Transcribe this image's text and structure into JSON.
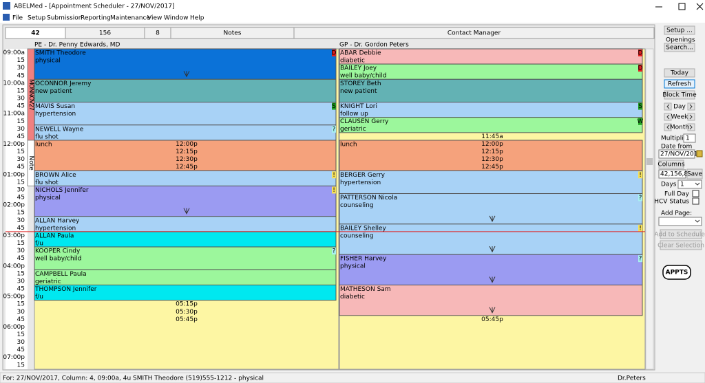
{
  "window": {
    "title": "ABELMed - [Appointment Scheduler - 27/NOV/2017]",
    "menu": [
      "File",
      "Setup",
      "Submission",
      "Reporting",
      "Maintenance",
      "View",
      "Window",
      "Help"
    ]
  },
  "tabs": [
    "42",
    "156",
    "8",
    "Notes",
    "Contact Manager"
  ],
  "date_strip": "MONNOV27",
  "note_strip": "Note",
  "current_time_slot": 24,
  "times": [
    "09:00a",
    "15",
    "30",
    "45",
    "10:00a",
    "15",
    "30",
    "45",
    "11:00a",
    "15",
    "30",
    "45",
    "12:00p",
    "15",
    "30",
    "45",
    "01:00p",
    "15",
    "30",
    "45",
    "02:00p",
    "15",
    "30",
    "45",
    "03:00p",
    "15",
    "30",
    "45",
    "04:00p",
    "15",
    "30",
    "45",
    "05:00p",
    "15",
    "30",
    "45",
    "06:00p",
    "15",
    "30",
    "45",
    "07:00p",
    "15"
  ],
  "columns": [
    {
      "header": "PE - Dr. Penny Edwards, MD",
      "appointments": [
        {
          "name": "SMITH Theodore",
          "reason": "physical",
          "slot": 0,
          "length": 4,
          "color": "#0b72d8",
          "text_color": "#ffffff",
          "flag": {
            "text": "D",
            "color": "#e02020"
          }
        },
        {
          "name": "OCONNOR Jeremy",
          "reason": "new patient",
          "slot": 4,
          "length": 3,
          "color": "#63b2b4"
        },
        {
          "name": "MAVIS Susan",
          "reason": "hypertension",
          "slot": 7,
          "length": 3,
          "color": "#a8d2f6",
          "flag": {
            "text": "S",
            "color": "#20a020"
          }
        },
        {
          "name": "NEWELL Wayne",
          "reason": "flu shot",
          "slot": 10,
          "length": 2,
          "color": "#a8d2f6",
          "flag": {
            "text": "?",
            "color": "#a8f0f0"
          }
        },
        {
          "name": "lunch",
          "slot": 12,
          "length": 4,
          "color": "#f5a27c",
          "times": [
            "12:00p",
            "12:15p",
            "12:30p",
            "12:45p"
          ]
        },
        {
          "name": "BROWN Alice",
          "reason": "flu shot",
          "slot": 16,
          "length": 2,
          "color": "#a8d2f6",
          "flag": {
            "text": "!",
            "color": "#f5e05a"
          }
        },
        {
          "name": "NICHOLS Jennifer",
          "reason": "physical",
          "slot": 18,
          "length": 4,
          "color": "#9b9bf2",
          "flag": {
            "text": "!",
            "color": "#f5e05a"
          }
        },
        {
          "name": "ALLAN Harvey",
          "reason": "hypertension",
          "slot": 22,
          "length": 2,
          "color": "#a8d2f6"
        },
        {
          "name": "ALLAN Paula",
          "reason": "f/u",
          "slot": 24,
          "length": 2,
          "color": "#00e8f0"
        },
        {
          "name": "KOOPER Cindy",
          "reason": "well baby/child",
          "slot": 26,
          "length": 3,
          "color": "#9cf79c",
          "flag": {
            "text": "?",
            "color": "#a8f0f0"
          }
        },
        {
          "name": "CAMPBELL Paula",
          "reason": "geriatric",
          "slot": 29,
          "length": 2,
          "color": "#9cf79c"
        },
        {
          "name": "THOMPSON Jennifer",
          "reason": "f/u",
          "slot": 31,
          "length": 2,
          "color": "#00e8f0"
        }
      ],
      "open_slots": [
        {
          "slot": 33,
          "text": "05:15p"
        },
        {
          "slot": 34,
          "text": "05:30p"
        },
        {
          "slot": 35,
          "text": "05:45p"
        }
      ]
    },
    {
      "header": "GP - Dr. Gordon Peters",
      "appointments": [
        {
          "name": "ABAR Debbie",
          "reason": "diabetic",
          "slot": 0,
          "length": 2,
          "color": "#f7b8b8",
          "flag": {
            "text": "D",
            "color": "#e02020"
          }
        },
        {
          "name": "BAILEY Joey",
          "reason": "well baby/child",
          "slot": 2,
          "length": 2,
          "color": "#9cf79c",
          "flag": {
            "text": "D",
            "color": "#e02020"
          }
        },
        {
          "name": "STOREY Beth",
          "reason": "new patient",
          "slot": 4,
          "length": 3,
          "color": "#63b2b4"
        },
        {
          "name": "KNIGHT Lori",
          "reason": "follow up",
          "slot": 7,
          "length": 2,
          "color": "#a8d2f6",
          "flag": {
            "text": "S",
            "color": "#20a020"
          }
        },
        {
          "name": "CLAUSEN Gerry",
          "reason": "geriatric",
          "slot": 9,
          "length": 2,
          "color": "#9cf79c",
          "flag": {
            "text": "W",
            "color": "#20a020"
          }
        },
        {
          "name": "lunch",
          "slot": 12,
          "length": 4,
          "color": "#f5a27c",
          "times": [
            "12:00p",
            "12:15p",
            "12:30p",
            "12:45p"
          ]
        },
        {
          "name": "BERGER Gerry",
          "reason": "hypertension",
          "slot": 16,
          "length": 3,
          "color": "#a8d2f6",
          "flag": {
            "text": "!",
            "color": "#f5e05a"
          }
        },
        {
          "name": "PATTERSON Nicola",
          "reason": "counseling",
          "slot": 19,
          "length": 4,
          "color": "#a8d2f6",
          "flag": {
            "text": "?",
            "color": "#a8f0f0"
          }
        },
        {
          "name": "BAILEY Shelley",
          "reason": "counseling",
          "slot": 23,
          "length": 4,
          "color": "#a8d2f6",
          "flag": {
            "text": "!",
            "color": "#f5e05a"
          }
        },
        {
          "name": "FISHER Harvey",
          "reason": "physical",
          "slot": 27,
          "length": 4,
          "color": "#9b9bf2",
          "flag": {
            "text": "?",
            "color": "#a8f0f0"
          }
        },
        {
          "name": "MATHESON Sam",
          "reason": "diabetic",
          "slot": 31,
          "length": 4,
          "color": "#f7b8b8"
        }
      ],
      "open_slots": [
        {
          "slot": 11,
          "text": "11:45a"
        },
        {
          "slot": 35,
          "text": "05:45p"
        }
      ]
    }
  ],
  "sidebar": {
    "setup": "Setup ...",
    "openings": "Openings",
    "search": "Search...",
    "today": "Today",
    "refresh": "Refresh",
    "block_time": "Block Time",
    "day": "Day",
    "week": "Week",
    "month": "Month",
    "multiplier": "Multiplier",
    "multiplier_value": "1",
    "date_from": "Date from",
    "date_value": "27/NOV/2017",
    "columns": "Columns",
    "columns_value": "42,156,8",
    "save": "Save",
    "days": "Days",
    "days_value": "1",
    "full_day": "Full Day",
    "hcv_status": "HCV Status",
    "add_page": "Add Page:",
    "add_to_scheduler": "Add to Scheduler",
    "clear_selection": "Clear Selection",
    "logo": "APPTS"
  },
  "status": {
    "left": "For: 27/NOV/2017, Column: 4, 09:00a, 4u SMITH Theodore  (519)555-1212 - physical",
    "right": "Dr.Peters"
  }
}
